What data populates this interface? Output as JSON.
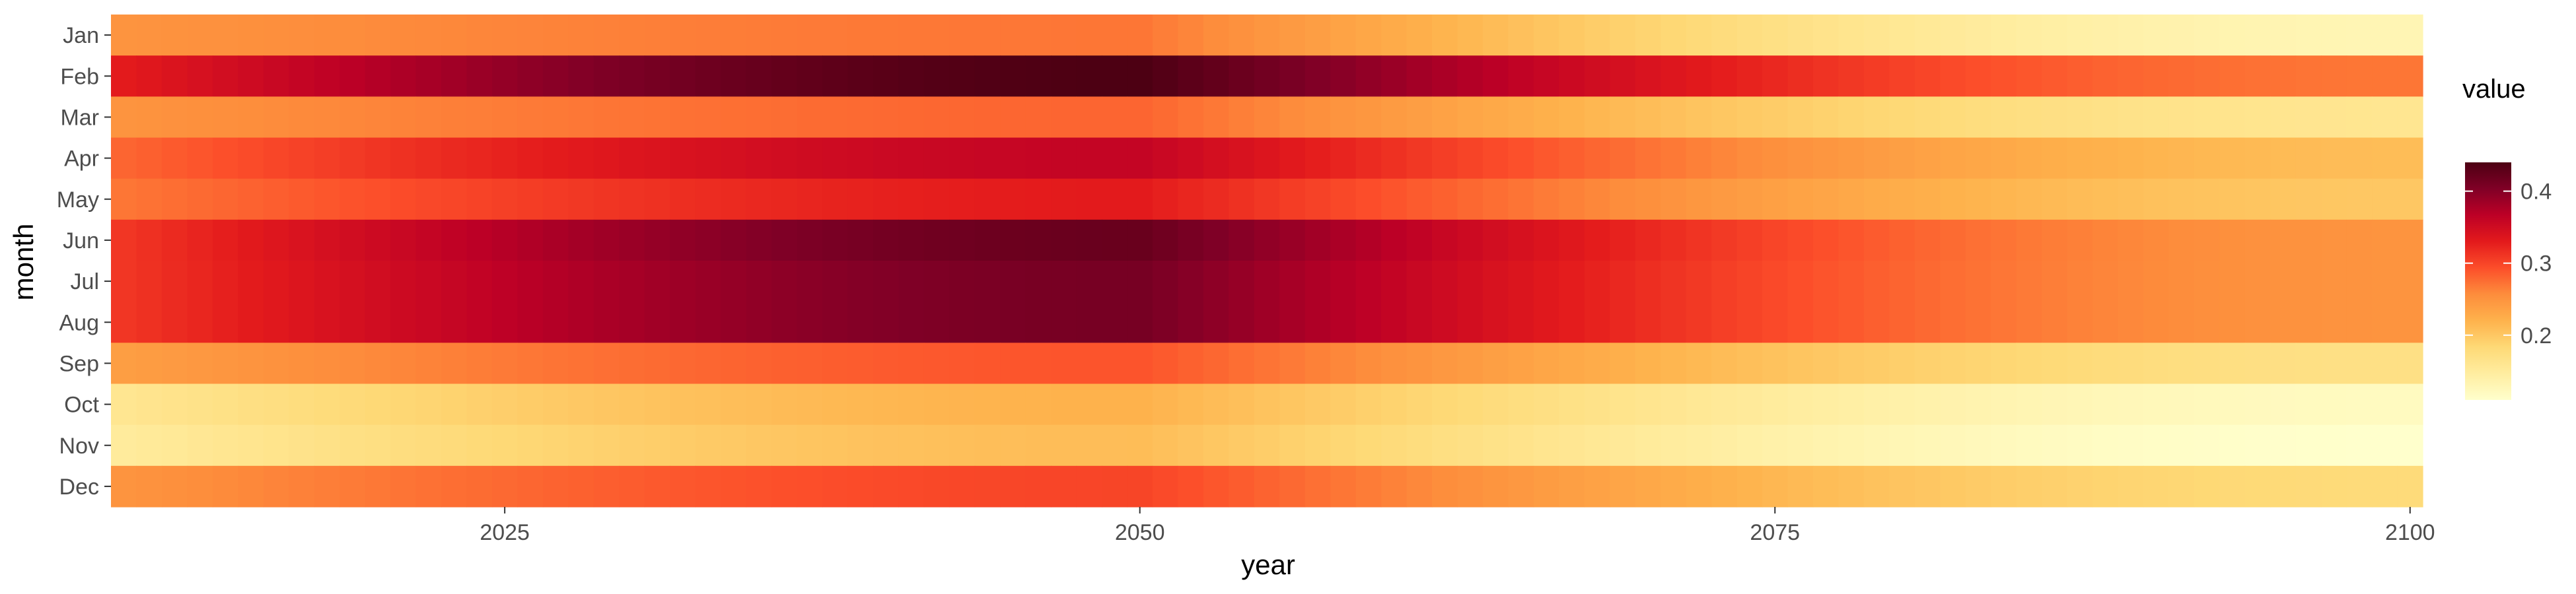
{
  "chart_data": {
    "type": "heatmap",
    "title": "",
    "xlabel": "year",
    "ylabel": "month",
    "x_range": [
      2010,
      2100
    ],
    "x_ticks": [
      2025,
      2050,
      2075,
      2100
    ],
    "months": [
      "Jan",
      "Feb",
      "Mar",
      "Apr",
      "May",
      "Jun",
      "Jul",
      "Aug",
      "Sep",
      "Oct",
      "Nov",
      "Dec"
    ],
    "month_profiles": {
      "Jan": {
        "start": 0.25,
        "peak": 0.27,
        "end": 0.13
      },
      "Feb": {
        "start": 0.33,
        "peak": 0.44,
        "end": 0.27
      },
      "Mar": {
        "start": 0.25,
        "peak": 0.28,
        "end": 0.16
      },
      "Apr": {
        "start": 0.28,
        "peak": 0.36,
        "end": 0.21
      },
      "May": {
        "start": 0.27,
        "peak": 0.33,
        "end": 0.2
      },
      "Jun": {
        "start": 0.31,
        "peak": 0.42,
        "end": 0.25
      },
      "Jul": {
        "start": 0.31,
        "peak": 0.41,
        "end": 0.25
      },
      "Aug": {
        "start": 0.31,
        "peak": 0.41,
        "end": 0.25
      },
      "Sep": {
        "start": 0.24,
        "peak": 0.29,
        "end": 0.17
      },
      "Oct": {
        "start": 0.16,
        "peak": 0.22,
        "end": 0.12
      },
      "Nov": {
        "start": 0.15,
        "peak": 0.21,
        "end": 0.11
      },
      "Dec": {
        "start": 0.25,
        "peak": 0.3,
        "end": 0.18
      }
    },
    "peak_year": 2050,
    "legend": {
      "title": "value",
      "ticks": [
        0.2,
        0.3,
        0.4
      ],
      "range": [
        0.11,
        0.44
      ],
      "placement": "right"
    },
    "colormap": [
      "#ffffcc",
      "#ffeda0",
      "#fed976",
      "#feb24c",
      "#fd8d3c",
      "#fc4e2a",
      "#e31a1c",
      "#bd0026",
      "#800026",
      "#4d0013"
    ],
    "grid": true
  }
}
